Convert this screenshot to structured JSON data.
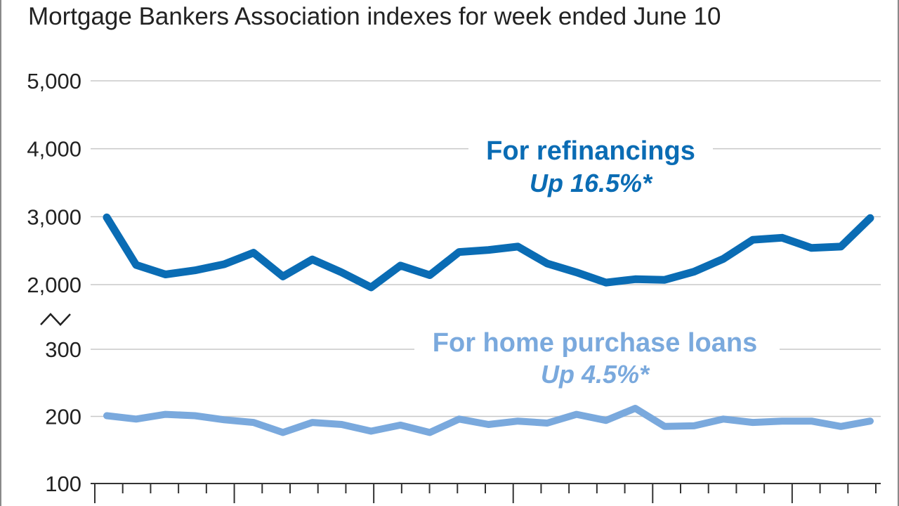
{
  "chart_data": {
    "type": "line",
    "title": "Mortgage Bankers Association indexes for week ended June 10",
    "xlabel": "",
    "ylabel": "",
    "axis_break": true,
    "y_ticks": [
      "5,000",
      "4,000",
      "3,000",
      "2,000",
      "300",
      "200",
      "100"
    ],
    "upper_panel": {
      "ylim": [
        2000,
        5000
      ]
    },
    "lower_panel": {
      "ylim": [
        100,
        300
      ]
    },
    "series": [
      {
        "name": "For refinancings",
        "change_label": "Up 16.5%*",
        "color": "#0a6cb4",
        "panel": "upper",
        "values": [
          2990,
          2290,
          2150,
          2210,
          2300,
          2470,
          2120,
          2370,
          2180,
          1960,
          2280,
          2140,
          2480,
          2510,
          2560,
          2310,
          2180,
          2030,
          2080,
          2070,
          2190,
          2380,
          2660,
          2690,
          2540,
          2560,
          2980
        ]
      },
      {
        "name": "For home purchase loans",
        "change_label": "Up 4.5%*",
        "color": "#7aa9dd",
        "panel": "lower",
        "values": [
          201,
          196,
          203,
          201,
          195,
          191,
          176,
          191,
          188,
          178,
          187,
          176,
          196,
          188,
          193,
          190,
          203,
          194,
          212,
          185,
          186,
          196,
          191,
          193,
          193,
          185,
          193
        ]
      }
    ]
  }
}
